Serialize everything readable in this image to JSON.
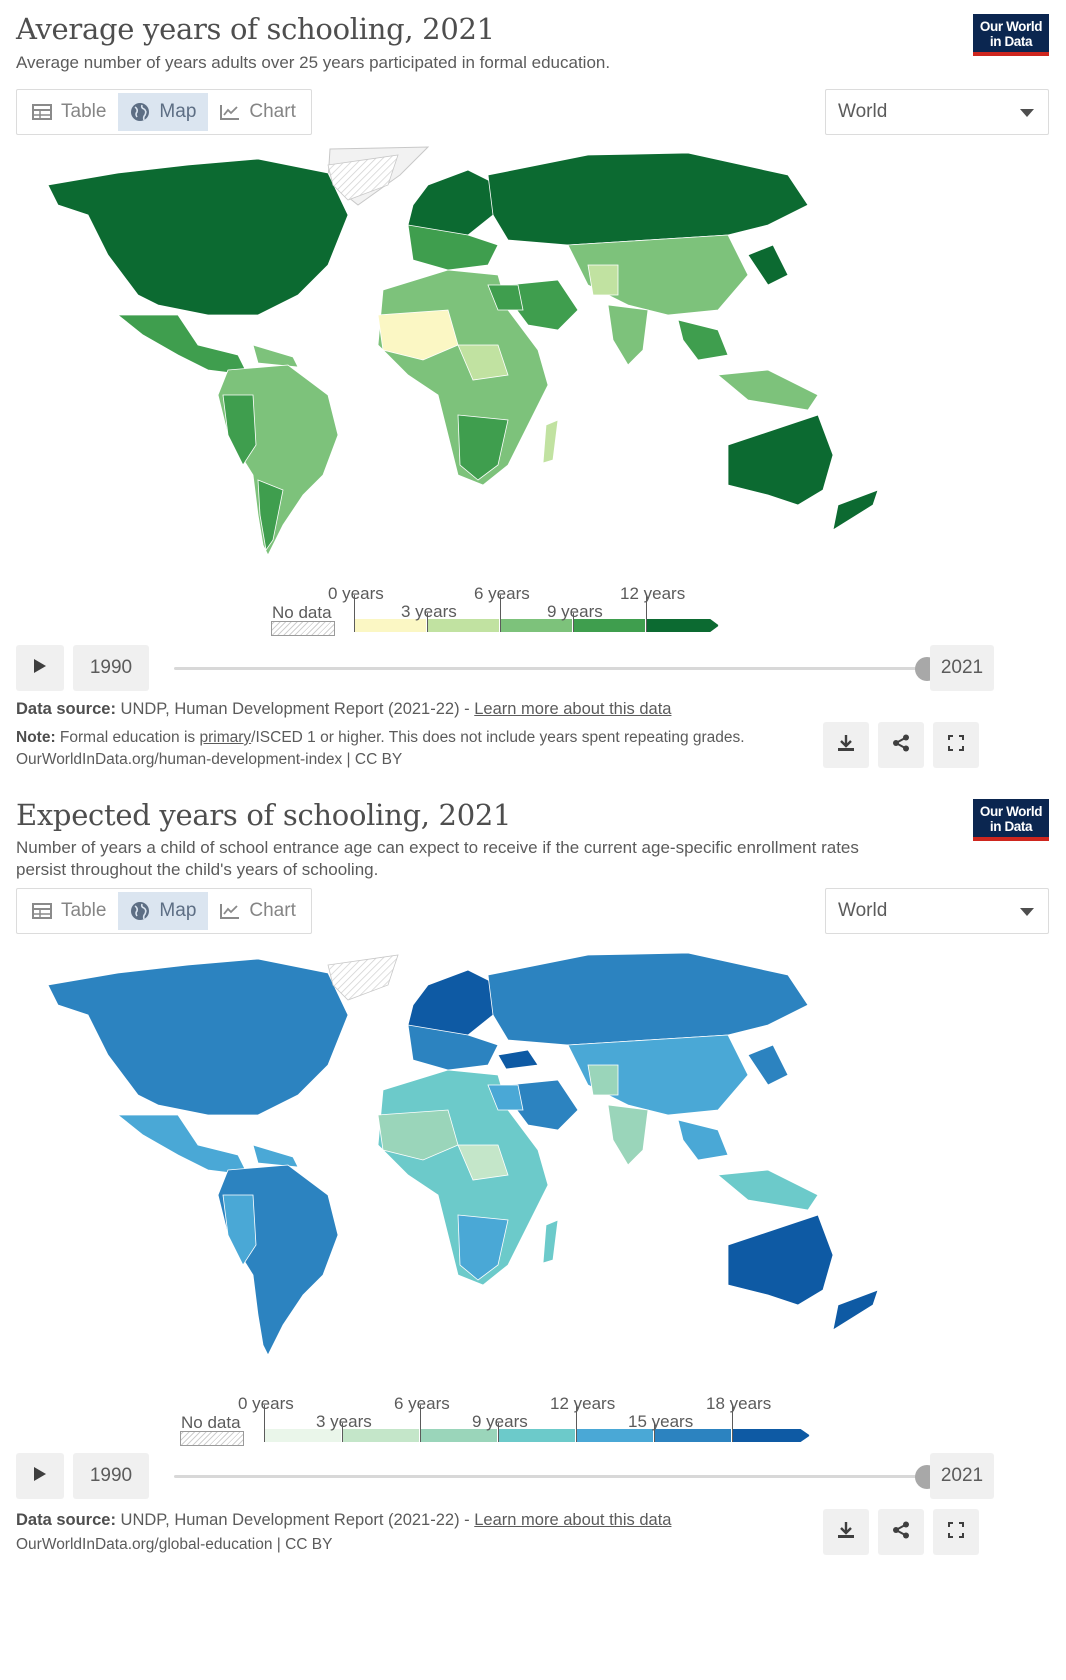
{
  "panels": [
    {
      "title": "Average years of schooling, 2021",
      "subtitle": "Average number of years adults over 25 years participated in formal education.",
      "logo_line1": "Our World",
      "logo_line2": "in Data",
      "tabs": [
        {
          "label": "Table",
          "icon": "table-icon"
        },
        {
          "label": "Map",
          "icon": "globe-icon",
          "active": true
        },
        {
          "label": "Chart",
          "icon": "line-chart-icon"
        }
      ],
      "region": "World",
      "legend": {
        "no_data": "No data",
        "labels": [
          "0 years",
          "3 years",
          "6 years",
          "9 years",
          "12 years"
        ],
        "colors": [
          "#fbf7c4",
          "#c1e2a1",
          "#7dc27b",
          "#3f9e4e",
          "#0c6a31"
        ],
        "scheme": "green"
      },
      "timeline": {
        "start": "1990",
        "end": "2021"
      },
      "source_label": "Data source:",
      "source_text": "UNDP, Human Development Report (2021-22) -",
      "source_link": "Learn more about this data",
      "note_label": "Note:",
      "note_text_a": "Formal education is",
      "note_link": "primary",
      "note_text_b": "/ISCED 1 or higher. This does not include years spent repeating grades.",
      "url": "OurWorldInData.org/human-development-index | CC BY"
    },
    {
      "title": "Expected years of schooling, 2021",
      "subtitle": "Number of years a child of school entrance age can expect to receive if the current age-specific enrollment rates persist throughout the child's years of schooling.",
      "logo_line1": "Our World",
      "logo_line2": "in Data",
      "tabs": [
        {
          "label": "Table",
          "icon": "table-icon"
        },
        {
          "label": "Map",
          "icon": "globe-icon",
          "active": true
        },
        {
          "label": "Chart",
          "icon": "line-chart-icon"
        }
      ],
      "region": "World",
      "legend": {
        "no_data": "No data",
        "labels": [
          "0 years",
          "3 years",
          "6 years",
          "9 years",
          "12 years",
          "15 years",
          "18 years"
        ],
        "colors": [
          "#eaf6ea",
          "#c4e6c9",
          "#9ad5ba",
          "#6ccaca",
          "#4aa8d6",
          "#2c83c0",
          "#0e5aa4"
        ],
        "scheme": "blue"
      },
      "timeline": {
        "start": "1990",
        "end": "2021"
      },
      "source_label": "Data source:",
      "source_text": "UNDP, Human Development Report (2021-22) -",
      "source_link": "Learn more about this data",
      "url": "OurWorldInData.org/global-education | CC BY"
    }
  ]
}
